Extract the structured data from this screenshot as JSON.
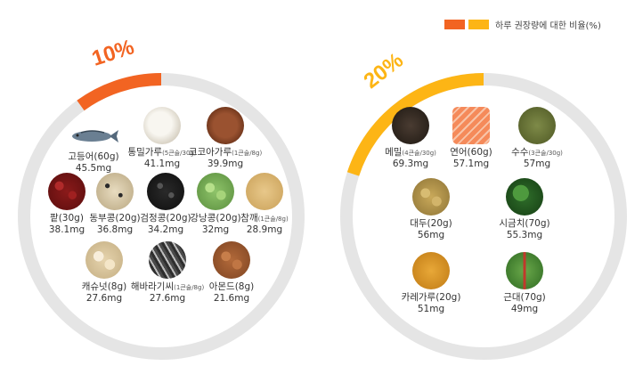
{
  "legend": {
    "colors": [
      "#f26422",
      "#fdb515"
    ],
    "label": "하루 권장량에 대한 비율(%)"
  },
  "panels": [
    {
      "percent_label": "10%",
      "accent": "#f26422",
      "fraction": 0.1,
      "items": [
        {
          "name": "고등어(60g)",
          "note": "",
          "amount": "45.5mg",
          "icon": "mackerel-icon",
          "color": "#6a7f92"
        },
        {
          "name": "통밀가루",
          "note": "(5큰술/30g)",
          "amount": "41.1mg",
          "icon": "wheat-flour-icon",
          "color": "#e6e2d8"
        },
        {
          "name": "코코아가루",
          "note": "(1큰술/8g)",
          "amount": "39.9mg",
          "icon": "cocoa-powder-icon",
          "color": "#7a3f22"
        },
        {
          "name": "팥(30g)",
          "note": "",
          "amount": "38.1mg",
          "icon": "red-bean-icon",
          "color": "#8b1a1a"
        },
        {
          "name": "동부콩(20g)",
          "note": "",
          "amount": "36.8mg",
          "icon": "cowpea-icon",
          "color": "#d8c9a8"
        },
        {
          "name": "검정콩(20g)",
          "note": "",
          "amount": "34.2mg",
          "icon": "black-bean-icon",
          "color": "#1e1e1e"
        },
        {
          "name": "강낭콩(20g)",
          "note": "",
          "amount": "32mg",
          "icon": "kidney-bean-icon",
          "color": "#8fc46a"
        },
        {
          "name": "참깨",
          "note": "(1큰술/8g)",
          "amount": "28.9mg",
          "icon": "sesame-icon",
          "color": "#d9b36a"
        },
        {
          "name": "캐슈넛(8g)",
          "note": "",
          "amount": "27.6mg",
          "icon": "cashew-icon",
          "color": "#efe2c6"
        },
        {
          "name": "해바라기씨",
          "note": "(1큰술/8g)",
          "amount": "27.6mg",
          "icon": "sunflower-seed-icon",
          "color": "#5a5a5a"
        },
        {
          "name": "아몬드(8g)",
          "note": "",
          "amount": "21.6mg",
          "icon": "almond-icon",
          "color": "#b36a3a"
        }
      ]
    },
    {
      "percent_label": "20%",
      "accent": "#fdb515",
      "fraction": 0.2,
      "items": [
        {
          "name": "메밀",
          "note": "(4큰술/30g)",
          "amount": "69.3mg",
          "icon": "buckwheat-icon",
          "color": "#3b3028"
        },
        {
          "name": "연어(60g)",
          "note": "",
          "amount": "57.1mg",
          "icon": "salmon-icon",
          "color": "#f07a4a"
        },
        {
          "name": "수수",
          "note": "(3큰술/30g)",
          "amount": "57mg",
          "icon": "sorghum-icon",
          "color": "#6e7a3a"
        },
        {
          "name": "대두(20g)",
          "note": "",
          "amount": "56mg",
          "icon": "soybean-icon",
          "color": "#c9a95a"
        },
        {
          "name": "시금치(70g)",
          "note": "",
          "amount": "55.3mg",
          "icon": "spinach-icon",
          "color": "#2f6e2a"
        },
        {
          "name": "카레가루(20g)",
          "note": "",
          "amount": "51mg",
          "icon": "curry-powder-icon",
          "color": "#d89420"
        },
        {
          "name": "근대(70g)",
          "note": "",
          "amount": "49mg",
          "icon": "chard-icon",
          "color": "#5a9a3a"
        }
      ]
    }
  ]
}
